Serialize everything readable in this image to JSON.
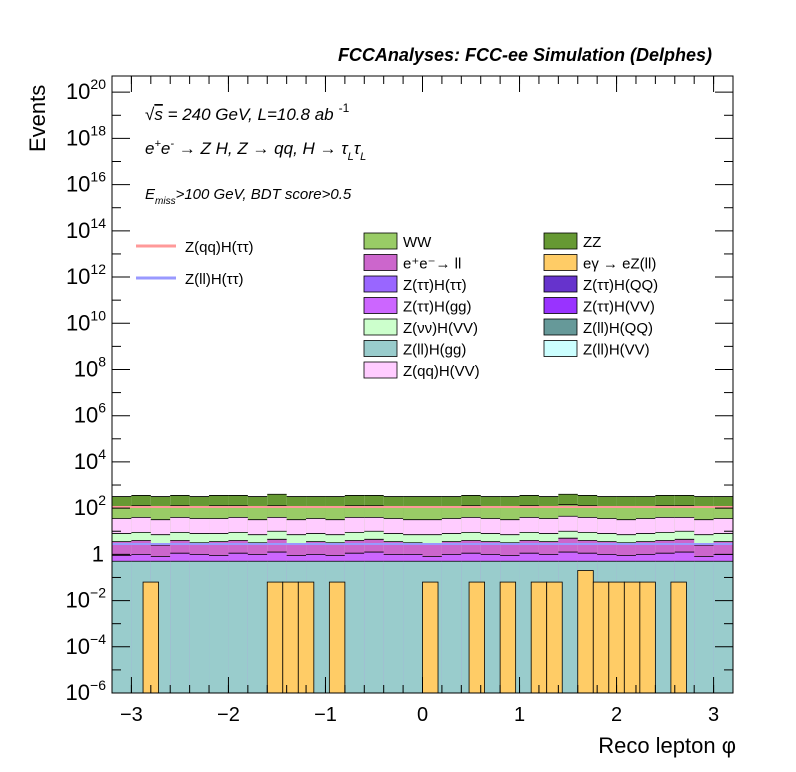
{
  "chart_data": {
    "type": "stacked-histogram",
    "title": "FCCAnalyses: FCC-ee Simulation (Delphes)",
    "xlabel": "Reco lepton φ",
    "ylabel": "Events",
    "xlim": [
      -3.2,
      3.2
    ],
    "ylim_log10": [
      -6,
      20.7
    ],
    "log_y": true,
    "grid": false,
    "annotations": {
      "energy_prefix": "√",
      "energy_var": "s",
      "energy_text": " = 240 GeV, L=10.8 ab",
      "lumi_exp": "-1",
      "process_e1": "e",
      "process_sup_plus": "+",
      "process_e2": "e",
      "process_sup_minus": "-",
      "process_rest": " → Z H, Z  → qq, H  → ",
      "process_tau1": "τ",
      "process_sub_L1": "L",
      "process_tau2": "τ",
      "process_sub_L2": "L",
      "cut_E": "E",
      "cut_sub": "miss",
      "cut_rest": ">100 GeV, BDT score>0.5"
    },
    "x_ticks": [
      {
        "v": -3,
        "label": "−3"
      },
      {
        "v": -2,
        "label": "−2"
      },
      {
        "v": -1,
        "label": "−1"
      },
      {
        "v": 0,
        "label": "0"
      },
      {
        "v": 1,
        "label": "1"
      },
      {
        "v": 2,
        "label": "2"
      },
      {
        "v": 3,
        "label": "3"
      }
    ],
    "y_ticks": [
      {
        "p": -6,
        "base": "10",
        "exp": "−6"
      },
      {
        "p": -4,
        "base": "10",
        "exp": "−4"
      },
      {
        "p": -2,
        "base": "10",
        "exp": "−2"
      },
      {
        "p": 0,
        "base": "1",
        "exp": ""
      },
      {
        "p": 2,
        "base": "10",
        "exp": "2"
      },
      {
        "p": 4,
        "base": "10",
        "exp": "4"
      },
      {
        "p": 6,
        "base": "10",
        "exp": "6"
      },
      {
        "p": 8,
        "base": "10",
        "exp": "8"
      },
      {
        "p": 10,
        "base": "10",
        "exp": "10"
      },
      {
        "p": 12,
        "base": "10",
        "exp": "12"
      },
      {
        "p": 14,
        "base": "10",
        "exp": "14"
      },
      {
        "p": 16,
        "base": "10",
        "exp": "16"
      },
      {
        "p": 18,
        "base": "10",
        "exp": "18"
      },
      {
        "p": 20,
        "base": "10",
        "exp": "20"
      }
    ],
    "bins": 32,
    "stack_log10": {
      "Z(ll)H(gg)": [
        -0.3,
        -0.3,
        -0.3,
        -0.3,
        -0.3,
        -0.3,
        -0.3,
        -0.3,
        -0.3,
        -0.3,
        -0.3,
        -0.3,
        -0.3,
        -0.3,
        -0.3,
        -0.3,
        -0.3,
        -0.3,
        -0.3,
        -0.3,
        -0.3,
        -0.3,
        -0.3,
        -0.3,
        -0.3,
        -0.3,
        -0.3,
        -0.3,
        -0.3,
        -0.3,
        -0.3,
        -0.3
      ],
      "Z(ττ)H(gg)": [
        -0.05,
        0.0,
        -0.1,
        0.05,
        0.0,
        -0.05,
        0.05,
        0.0,
        0.1,
        -0.05,
        0.0,
        -0.05,
        0.05,
        0.1,
        0.0,
        0.0,
        -0.1,
        0.0,
        0.05,
        0.0,
        -0.05,
        0.05,
        0.0,
        0.1,
        0.05,
        0.0,
        -0.05,
        0.0,
        0.05,
        0.1,
        -0.1,
        0.0
      ],
      "e+e- → ll": [
        0.55,
        0.6,
        0.4,
        0.6,
        0.5,
        0.55,
        0.6,
        0.5,
        0.65,
        0.45,
        0.55,
        0.5,
        0.6,
        0.65,
        0.55,
        0.5,
        0.45,
        0.55,
        0.6,
        0.55,
        0.5,
        0.6,
        0.55,
        0.7,
        0.6,
        0.55,
        0.5,
        0.55,
        0.6,
        0.65,
        0.4,
        0.55
      ],
      "Z(νν)H(VV)": [
        0.9,
        0.95,
        0.85,
        0.95,
        0.9,
        0.9,
        0.95,
        0.85,
        1.0,
        0.85,
        0.9,
        0.85,
        0.95,
        1.0,
        0.9,
        0.85,
        0.85,
        0.9,
        0.95,
        0.9,
        0.85,
        0.95,
        0.9,
        1.0,
        0.95,
        0.9,
        0.85,
        0.9,
        0.95,
        1.0,
        0.85,
        0.9
      ],
      "Z(qq)H(VV)": [
        1.55,
        1.6,
        1.5,
        1.6,
        1.55,
        1.55,
        1.6,
        1.5,
        1.6,
        1.5,
        1.55,
        1.5,
        1.6,
        1.6,
        1.55,
        1.5,
        1.5,
        1.55,
        1.6,
        1.55,
        1.5,
        1.6,
        1.55,
        1.65,
        1.6,
        1.55,
        1.5,
        1.55,
        1.6,
        1.6,
        1.5,
        1.55
      ],
      "WW": [
        2.05,
        2.1,
        2.05,
        2.1,
        2.05,
        2.1,
        2.1,
        2.05,
        2.1,
        2.05,
        2.05,
        2.05,
        2.1,
        2.1,
        2.05,
        2.05,
        2.05,
        2.05,
        2.1,
        2.05,
        2.05,
        2.1,
        2.05,
        2.15,
        2.1,
        2.05,
        2.05,
        2.05,
        2.1,
        2.1,
        2.05,
        2.05
      ],
      "ZZ": [
        2.5,
        2.55,
        2.5,
        2.55,
        2.5,
        2.55,
        2.55,
        2.5,
        2.6,
        2.5,
        2.5,
        2.5,
        2.55,
        2.55,
        2.5,
        2.5,
        2.5,
        2.5,
        2.55,
        2.5,
        2.5,
        2.55,
        2.5,
        2.6,
        2.55,
        2.5,
        2.5,
        2.5,
        2.55,
        2.55,
        2.5,
        2.5
      ]
    },
    "egamma_bins": [
      2,
      10,
      11,
      12,
      14,
      20,
      23,
      25,
      27,
      28,
      30,
      31,
      32,
      33,
      34,
      36
    ],
    "egamma_log10": [
      -1.2,
      -1.2,
      -1.2,
      -1.2,
      -1.2,
      -1.2,
      -1.2,
      -1.2,
      -1.2,
      -1.2,
      -1.2,
      -1.2,
      -1.2,
      -1.2,
      -1.2,
      -1.2
    ],
    "egamma_tall_log10": -0.7,
    "line_series": [
      {
        "name": "Z(qq)H(ττ)",
        "color": "#ff9999",
        "log10": 2.05
      },
      {
        "name": "Z(ll)H(ττ)",
        "color": "#9999ff",
        "log10": 0.45
      }
    ],
    "legend_left": [
      {
        "label": "Z(qq)H(ττ)",
        "color": "#ff9999"
      },
      {
        "label": "Z(ll)H(ττ)",
        "color": "#9999ff"
      }
    ],
    "legend_col1": [
      {
        "label": "WW",
        "color": "#99cc66"
      },
      {
        "label_html": "e+e-→ ll",
        "label": "e⁺e⁻→ ll",
        "color": "#cc66cc"
      },
      {
        "label": "Z(ττ)H(ττ)",
        "color": "#9966ff"
      },
      {
        "label": "Z(ττ)H(gg)",
        "color": "#cc66ff"
      },
      {
        "label": "Z(νν)H(VV)",
        "color": "#ccffcc"
      },
      {
        "label": "Z(ll)H(gg)",
        "color": "#99cccc"
      },
      {
        "label": "Z(qq)H(VV)",
        "color": "#ffccff"
      }
    ],
    "legend_col2": [
      {
        "label": "ZZ",
        "color": "#669933"
      },
      {
        "label": "eγ → eZ(ll)",
        "color": "#ffcc66"
      },
      {
        "label": "Z(ττ)H(QQ)",
        "color": "#6633cc"
      },
      {
        "label": "Z(ττ)H(VV)",
        "color": "#9933ff"
      },
      {
        "label": "Z(ll)H(QQ)",
        "color": "#669999"
      },
      {
        "label": "Z(ll)H(VV)",
        "color": "#ccffff"
      }
    ]
  }
}
